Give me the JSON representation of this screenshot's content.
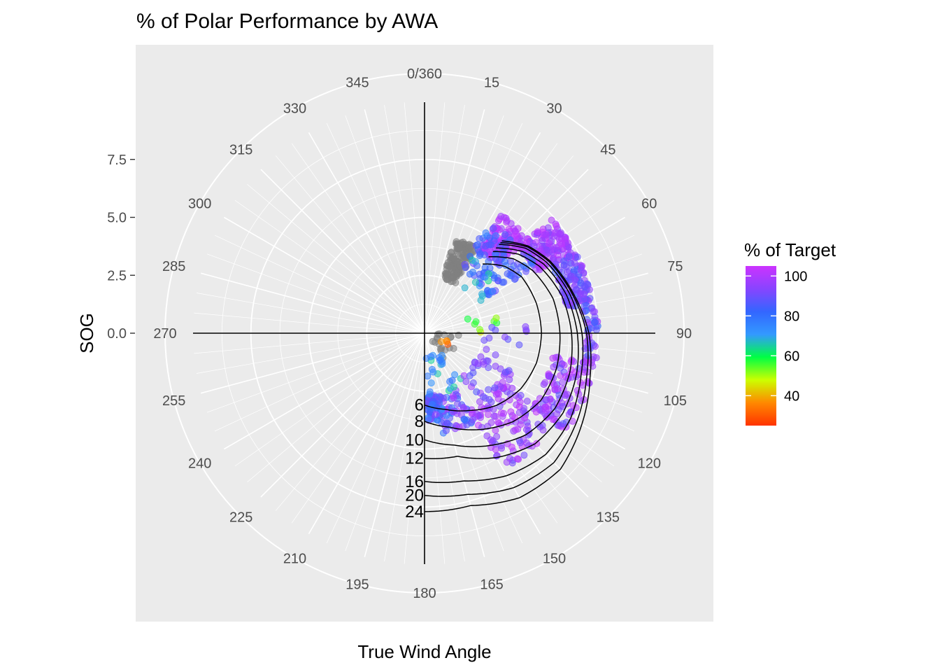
{
  "chart_data": {
    "type": "scatter",
    "coord": "polar",
    "title": "% of Polar Performance by AWA",
    "xlabel": "True Wind Angle",
    "ylabel": "SOG",
    "theta_breaks": [
      0,
      15,
      30,
      45,
      60,
      75,
      90,
      105,
      120,
      135,
      150,
      165,
      180,
      195,
      210,
      225,
      240,
      255,
      270,
      285,
      300,
      315,
      330,
      345
    ],
    "theta_labels": [
      "0/360",
      "15",
      "30",
      "45",
      "60",
      "75",
      "90",
      "105",
      "120",
      "135",
      "150",
      "165",
      "180",
      "195",
      "210",
      "225",
      "240",
      "255",
      "270",
      "285",
      "300",
      "315",
      "330",
      "345"
    ],
    "y_breaks": [
      0.0,
      2.5,
      5.0,
      7.5
    ],
    "y_labels": [
      "0.0",
      "2.5",
      "5.0",
      "7.5"
    ],
    "ylim": [
      0,
      10
    ],
    "legend": {
      "title": "% of Target",
      "position": "right",
      "range": [
        25,
        105
      ],
      "breaks": [
        40,
        60,
        80,
        100
      ],
      "labels": [
        "40",
        "60",
        "80",
        "100"
      ],
      "colors": [
        "#ff3300",
        "#ff8800",
        "#ccff00",
        "#00ff44",
        "#3399ff",
        "#3366ff",
        "#8844ff",
        "#cc33ff"
      ]
    },
    "polar_curves": [
      {
        "label": "6",
        "tws": 6,
        "points": [
          [
            40,
            3.9
          ],
          [
            50,
            4.5
          ],
          [
            60,
            4.85
          ],
          [
            75,
            5.0
          ],
          [
            90,
            5.05
          ],
          [
            105,
            5.0
          ],
          [
            120,
            4.8
          ],
          [
            135,
            4.4
          ],
          [
            150,
            3.85
          ],
          [
            165,
            3.4
          ],
          [
            180,
            3.1
          ]
        ]
      },
      {
        "label": "8",
        "tws": 8,
        "points": [
          [
            40,
            4.3
          ],
          [
            50,
            5.0
          ],
          [
            60,
            5.4
          ],
          [
            75,
            5.75
          ],
          [
            90,
            5.85
          ],
          [
            105,
            5.9
          ],
          [
            120,
            5.8
          ],
          [
            135,
            5.4
          ],
          [
            150,
            4.8
          ],
          [
            165,
            4.2
          ],
          [
            180,
            3.8
          ]
        ]
      },
      {
        "label": "10",
        "tws": 10,
        "points": [
          [
            40,
            4.6
          ],
          [
            50,
            5.3
          ],
          [
            60,
            5.75
          ],
          [
            75,
            6.15
          ],
          [
            90,
            6.35
          ],
          [
            105,
            6.5
          ],
          [
            120,
            6.5
          ],
          [
            135,
            6.2
          ],
          [
            150,
            5.6
          ],
          [
            165,
            5.0
          ],
          [
            180,
            4.6
          ]
        ]
      },
      {
        "label": "12",
        "tws": 12,
        "points": [
          [
            40,
            4.8
          ],
          [
            50,
            5.5
          ],
          [
            60,
            5.95
          ],
          [
            75,
            6.35
          ],
          [
            90,
            6.6
          ],
          [
            105,
            6.8
          ],
          [
            120,
            6.9
          ],
          [
            135,
            6.75
          ],
          [
            150,
            6.2
          ],
          [
            165,
            5.5
          ],
          [
            180,
            5.4
          ]
        ]
      },
      {
        "label": "16",
        "tws": 16,
        "points": [
          [
            40,
            5.0
          ],
          [
            50,
            5.7
          ],
          [
            60,
            6.1
          ],
          [
            75,
            6.5
          ],
          [
            90,
            6.8
          ],
          [
            105,
            7.0
          ],
          [
            120,
            7.3
          ],
          [
            135,
            7.4
          ],
          [
            150,
            7.1
          ],
          [
            165,
            6.6
          ],
          [
            180,
            6.4
          ]
        ]
      },
      {
        "label": "20",
        "tws": 20,
        "points": [
          [
            40,
            5.1
          ],
          [
            50,
            5.8
          ],
          [
            60,
            6.2
          ],
          [
            75,
            6.6
          ],
          [
            90,
            7.0
          ],
          [
            105,
            7.25
          ],
          [
            120,
            7.6
          ],
          [
            135,
            7.9
          ],
          [
            150,
            7.7
          ],
          [
            165,
            7.2
          ],
          [
            180,
            7.0
          ]
        ]
      },
      {
        "label": "24",
        "tws": 24,
        "points": [
          [
            40,
            5.2
          ],
          [
            50,
            5.85
          ],
          [
            60,
            6.25
          ],
          [
            75,
            6.65
          ],
          [
            90,
            7.1
          ],
          [
            105,
            7.4
          ],
          [
            120,
            7.85
          ],
          [
            135,
            8.3
          ],
          [
            150,
            8.2
          ],
          [
            165,
            7.7
          ],
          [
            180,
            7.7
          ]
        ]
      }
    ],
    "series": [
      {
        "name": "clusters",
        "clusters": [
          {
            "twa": [
              18,
              32
            ],
            "sog": [
              2.5,
              4.3
            ],
            "pct": null,
            "n": 140
          },
          {
            "twa": [
              33,
              48
            ],
            "sog": [
              4.3,
              6.1
            ],
            "pct": [
              96,
              104
            ],
            "n": 110
          },
          {
            "twa": [
              48,
              62
            ],
            "sog": [
              5.5,
              7.4
            ],
            "pct": [
              92,
              104
            ],
            "n": 140
          },
          {
            "twa": [
              62,
              80
            ],
            "sog": [
              6.2,
              7.4
            ],
            "pct": [
              84,
              98
            ],
            "n": 130
          },
          {
            "twa": [
              80,
              100
            ],
            "sog": [
              6.9,
              7.5
            ],
            "pct": [
              82,
              100
            ],
            "n": 45
          },
          {
            "twa": [
              100,
              125
            ],
            "sog": [
              5.6,
              7.5
            ],
            "pct": [
              88,
              104
            ],
            "n": 110
          },
          {
            "twa": [
              122,
              150
            ],
            "sog": [
              3.8,
              6.8
            ],
            "pct": [
              90,
              104
            ],
            "n": 120
          },
          {
            "twa": [
              150,
              170
            ],
            "sog": [
              2.8,
              4.4
            ],
            "pct": [
              78,
              100
            ],
            "n": 60
          },
          {
            "twa": [
              165,
              178
            ],
            "sog": [
              2.7,
              3.8
            ],
            "pct": [
              70,
              96
            ],
            "n": 60
          },
          {
            "twa": [
              30,
              60
            ],
            "sog": [
              3.2,
              5.6
            ],
            "pct": [
              76,
              90
            ],
            "n": 90
          },
          {
            "twa": [
              30,
              60
            ],
            "sog": [
              2.5,
              3.8
            ],
            "pct": [
              62,
              76
            ],
            "n": 12
          },
          {
            "twa": [
              90,
              150
            ],
            "sog": [
              0.4,
              1.5
            ],
            "pct": null,
            "n": 18
          },
          {
            "twa": [
              105,
              125
            ],
            "sog": [
              0.8,
              1.4
            ],
            "pct": [
              25,
              40
            ],
            "n": 4
          },
          {
            "twa": [
              70,
              90
            ],
            "sog": [
              1.5,
              3.2
            ],
            "pct": [
              45,
              62
            ],
            "n": 8
          },
          {
            "twa": [
              140,
              178
            ],
            "sog": [
              1.0,
              2.8
            ],
            "pct": [
              64,
              80
            ],
            "n": 25
          },
          {
            "twa": [
              110,
              140
            ],
            "sog": [
              2.4,
              4.2
            ],
            "pct": [
              86,
              100
            ],
            "n": 35
          },
          {
            "twa": [
              85,
              110
            ],
            "sog": [
              2.5,
              4.5
            ],
            "pct": [
              86,
              98
            ],
            "n": 12
          }
        ]
      }
    ]
  }
}
